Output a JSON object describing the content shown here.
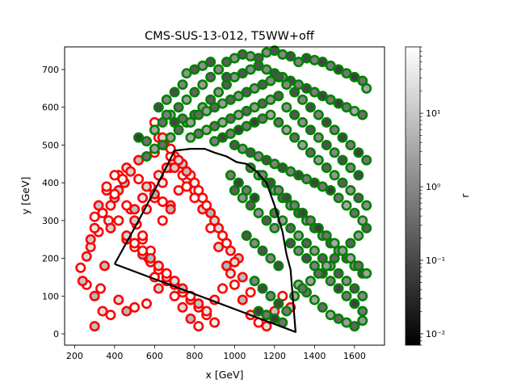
{
  "chart_data": {
    "type": "scatter",
    "title": "CMS-SUS-13-012, T5WW+off",
    "xlabel": "x [GeV]",
    "ylabel": "y [GeV]",
    "xlim": [
      150,
      1750
    ],
    "ylim": [
      -30,
      760
    ],
    "xticks": [
      200,
      400,
      600,
      800,
      1000,
      1200,
      1400,
      1600
    ],
    "yticks": [
      0,
      100,
      200,
      300,
      400,
      500,
      600,
      700
    ],
    "grid": false,
    "colorbar": {
      "label": "r",
      "scale": "log",
      "range": [
        0.007,
        80
      ],
      "ticks": [
        {
          "v": 0.01,
          "label": "10⁻²"
        },
        {
          "v": 0.1,
          "label": "10⁻¹"
        },
        {
          "v": 1,
          "label": "10⁰"
        },
        {
          "v": 10,
          "label": "10¹"
        }
      ],
      "colormap": "gray"
    },
    "colors": {
      "excluded": "#ff0000",
      "allowed": "#008000",
      "contour": "#000000"
    },
    "contour": {
      "x": [
        400,
        520,
        600,
        700,
        780,
        850,
        900,
        960,
        1010,
        1060,
        1110,
        1160,
        1200,
        1240,
        1260,
        1280,
        1300,
        1305,
        400
      ],
      "y": [
        185,
        300,
        380,
        485,
        490,
        490,
        480,
        470,
        455,
        450,
        430,
        400,
        340,
        270,
        210,
        170,
        40,
        5,
        185
      ]
    },
    "series": [
      {
        "status": "excluded",
        "x": [
          230,
          260,
          300,
          330,
          350,
          280,
          320,
          370,
          400,
          420,
          450,
          480,
          510,
          540,
          570,
          600,
          620,
          560,
          500,
          460,
          420,
          380,
          340,
          300,
          260,
          240,
          300,
          340,
          380,
          420,
          460,
          500,
          540,
          580,
          620,
          660,
          700,
          740,
          780,
          820,
          860,
          900,
          940,
          980,
          1020,
          640,
          680,
          720,
          760,
          800,
          840,
          880,
          920,
          960,
          1000,
          1040,
          1080,
          1120,
          1160,
          1200,
          1240,
          1280,
          560,
          600,
          640,
          680,
          720,
          760,
          800,
          840,
          880,
          920,
          960,
          1000,
          1040,
          1080,
          500,
          540,
          580,
          620,
          660,
          700,
          740,
          780,
          820,
          860,
          900,
          940,
          980,
          460,
          500,
          540,
          580,
          620,
          660,
          700,
          740,
          780,
          820,
          860,
          900,
          380,
          420,
          460,
          500,
          540,
          580,
          620,
          660,
          700,
          740,
          780,
          820,
          860,
          600,
          620,
          650,
          680,
          700,
          740,
          760,
          800,
          640,
          680,
          720,
          760,
          600,
          520,
          460,
          400,
          360,
          320,
          300,
          280,
          360,
          400,
          440,
          480,
          520,
          560,
          600,
          640,
          680
        ],
        "y": [
          175,
          205,
          100,
          120,
          180,
          230,
          270,
          300,
          360,
          420,
          400,
          330,
          290,
          250,
          200,
          150,
          120,
          80,
          70,
          60,
          90,
          50,
          60,
          20,
          130,
          140,
          280,
          320,
          340,
          380,
          340,
          300,
          260,
          220,
          180,
          140,
          100,
          70,
          40,
          20,
          60,
          90,
          120,
          160,
          200,
          300,
          340,
          380,
          410,
          380,
          330,
          280,
          230,
          180,
          130,
          90,
          50,
          30,
          20,
          60,
          100,
          70,
          330,
          360,
          400,
          440,
          460,
          430,
          400,
          360,
          320,
          280,
          240,
          190,
          150,
          110,
          330,
          360,
          390,
          420,
          440,
          470,
          450,
          420,
          380,
          340,
          300,
          260,
          220,
          250,
          230,
          210,
          190,
          170,
          150,
          130,
          110,
          90,
          70,
          50,
          30,
          280,
          300,
          260,
          240,
          220,
          200,
          180,
          160,
          140,
          120,
          100,
          80,
          60,
          560,
          520,
          500,
          470,
          440,
          420,
          390,
          360,
          520,
          490,
          460,
          430,
          480,
          460,
          440,
          420,
          380,
          340,
          310,
          250,
          390,
          370,
          410,
          430,
          410,
          390,
          370,
          350,
          330
        ]
      },
      {
        "status": "allowed",
        "x": [
          520,
          560,
          600,
          640,
          680,
          720,
          760,
          800,
          840,
          880,
          920,
          960,
          1000,
          1040,
          1080,
          1120,
          1160,
          1200,
          1240,
          1280,
          1320,
          1360,
          1400,
          1440,
          1480,
          1520,
          1560,
          1600,
          1640,
          1660,
          560,
          600,
          640,
          680,
          720,
          760,
          800,
          840,
          880,
          920,
          960,
          1000,
          1040,
          1080,
          1120,
          1160,
          1200,
          1240,
          1280,
          1320,
          1360,
          1400,
          1440,
          1480,
          1520,
          1560,
          1600,
          1640,
          700,
          740,
          780,
          820,
          860,
          900,
          940,
          980,
          1020,
          1060,
          1100,
          1140,
          1180,
          1220,
          1260,
          1300,
          1340,
          1380,
          1420,
          1460,
          1500,
          1540,
          1580,
          1620,
          1660,
          780,
          820,
          860,
          900,
          940,
          980,
          1020,
          1060,
          1100,
          1140,
          1180,
          1220,
          1260,
          1300,
          1340,
          1380,
          1420,
          1460,
          1500,
          1540,
          1580,
          1620,
          900,
          940,
          980,
          1020,
          1060,
          1100,
          1140,
          1180,
          1220,
          1260,
          1300,
          1340,
          1380,
          1420,
          1460,
          1500,
          1540,
          1580,
          1620,
          1660,
          1000,
          1040,
          1080,
          1120,
          1160,
          1200,
          1240,
          1280,
          1320,
          1360,
          1400,
          1440,
          1480,
          1520,
          1560,
          1600,
          1640,
          1080,
          1120,
          1160,
          1200,
          1240,
          1280,
          1320,
          1360,
          1400,
          1440,
          1480,
          1520,
          1560,
          1600,
          1640,
          1140,
          1180,
          1220,
          1260,
          1300,
          1340,
          1380,
          1420,
          1460,
          1500,
          1540,
          1580,
          1620,
          1660,
          1200,
          1240,
          1280,
          1320,
          1360,
          1400,
          1440,
          1480,
          1520,
          1560,
          1600,
          1640,
          1280,
          1320,
          1360,
          1400,
          1440,
          1480,
          1520,
          1560,
          1600,
          1640,
          1320,
          1360,
          1400,
          1440,
          1480,
          1520,
          1560,
          1600,
          1640,
          1000,
          1040,
          1080,
          1120,
          1160,
          1200,
          1060,
          1100,
          1140,
          1180,
          1220,
          1100,
          1140,
          1180,
          1220,
          1260,
          1120,
          1160,
          1200,
          1240,
          1300,
          1340,
          1380,
          1420,
          1460,
          1500,
          1540,
          1580,
          1620,
          1660,
          760,
          800,
          840,
          880,
          920,
          960,
          660,
          700,
          740,
          620,
          660,
          700,
          980,
          1020,
          1060,
          1100
        ],
        "y": [
          520,
          510,
          540,
          560,
          580,
          600,
          620,
          640,
          660,
          680,
          700,
          720,
          730,
          740,
          735,
          730,
          745,
          750,
          740,
          735,
          720,
          730,
          725,
          720,
          710,
          700,
          690,
          680,
          670,
          650,
          470,
          490,
          500,
          520,
          540,
          560,
          580,
          600,
          620,
          640,
          660,
          680,
          690,
          700,
          710,
          700,
          690,
          680,
          670,
          660,
          650,
          640,
          630,
          620,
          610,
          600,
          590,
          580,
          560,
          570,
          560,
          580,
          590,
          600,
          610,
          620,
          630,
          640,
          650,
          660,
          670,
          680,
          660,
          640,
          620,
          600,
          580,
          560,
          540,
          520,
          500,
          480,
          460,
          520,
          530,
          540,
          550,
          560,
          570,
          580,
          590,
          600,
          610,
          620,
          630,
          600,
          580,
          560,
          540,
          520,
          500,
          480,
          460,
          440,
          420,
          510,
          520,
          530,
          540,
          550,
          560,
          570,
          580,
          560,
          540,
          520,
          500,
          480,
          460,
          440,
          420,
          400,
          380,
          360,
          340,
          500,
          490,
          480,
          470,
          460,
          450,
          440,
          430,
          420,
          410,
          400,
          390,
          380,
          360,
          340,
          320,
          300,
          440,
          420,
          400,
          380,
          360,
          340,
          320,
          300,
          280,
          260,
          240,
          220,
          200,
          180,
          160,
          420,
          400,
          380,
          360,
          340,
          320,
          300,
          280,
          260,
          240,
          220,
          200,
          180,
          160,
          320,
          300,
          280,
          260,
          240,
          220,
          200,
          180,
          160,
          140,
          120,
          100,
          240,
          220,
          200,
          180,
          160,
          140,
          120,
          100,
          80,
          60,
          130,
          110,
          90,
          70,
          50,
          40,
          30,
          20,
          35,
          380,
          360,
          340,
          320,
          300,
          280,
          260,
          240,
          220,
          200,
          180,
          140,
          120,
          100,
          80,
          60,
          60,
          50,
          40,
          30,
          100,
          120,
          140,
          160,
          180,
          200,
          220,
          240,
          260,
          280,
          690,
          700,
          710,
          720,
          700,
          680,
          620,
          640,
          660,
          600,
          580,
          560,
          420,
          400,
          380,
          360
        ]
      }
    ]
  }
}
